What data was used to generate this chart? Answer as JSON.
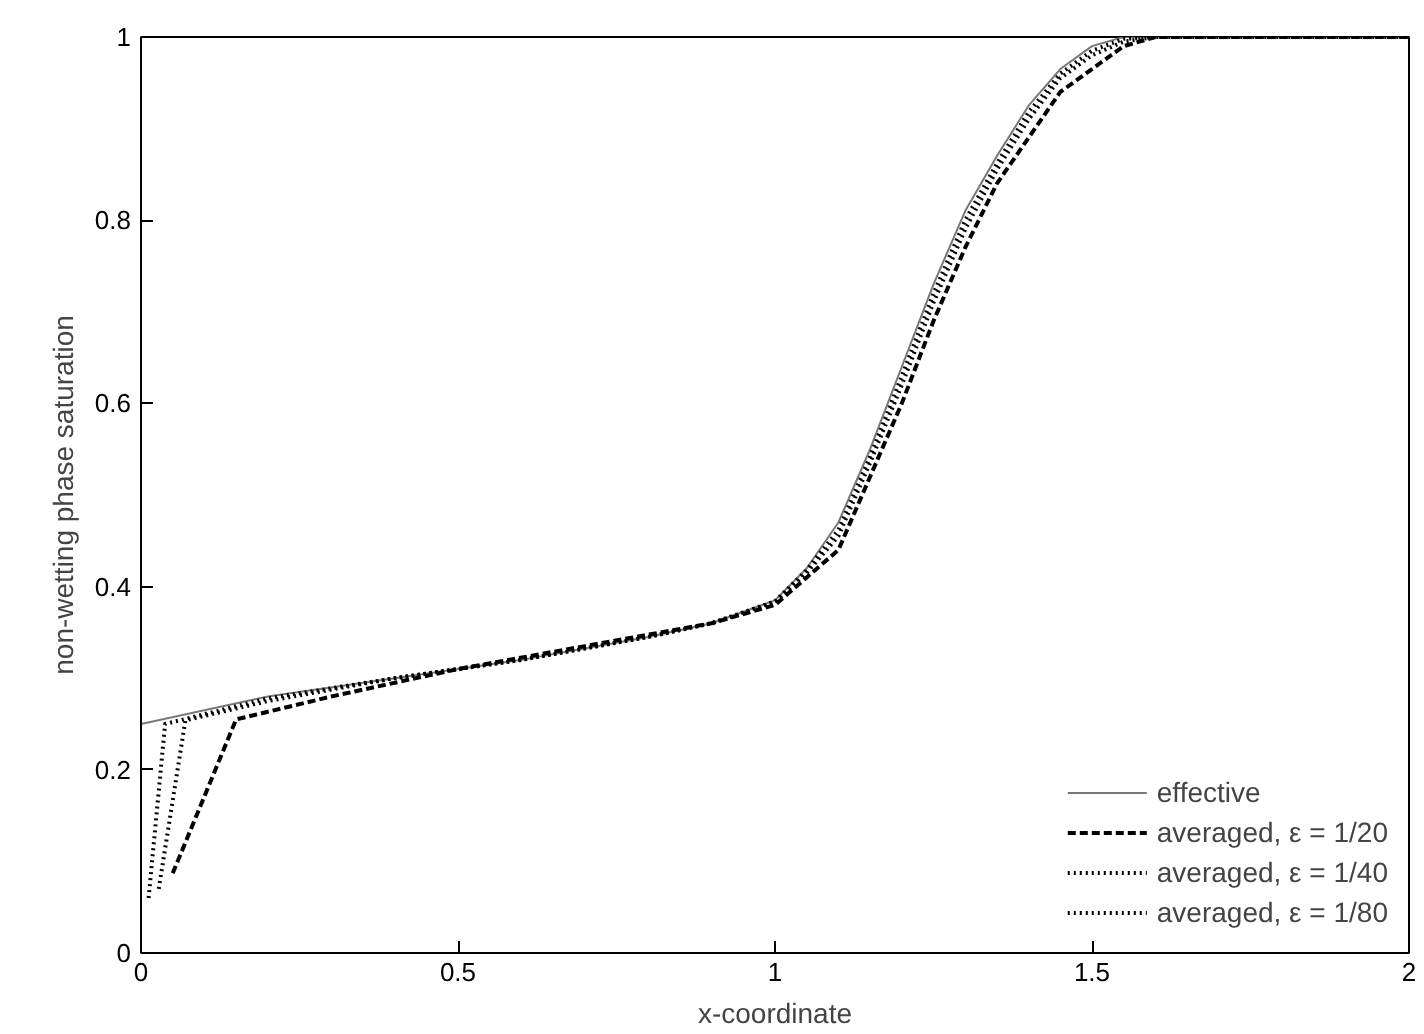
{
  "chart_data": {
    "type": "line",
    "xlabel": "x-coordinate",
    "ylabel": "non-wetting phase saturation",
    "xlim": [
      0,
      2
    ],
    "ylim": [
      0,
      1
    ],
    "xticks": [
      0,
      0.5,
      1,
      1.5,
      2
    ],
    "yticks": [
      0,
      0.2,
      0.4,
      0.6,
      0.8,
      1
    ],
    "grid": false,
    "legend": "bottom right",
    "marker": "none",
    "series": [
      {
        "name": "effective",
        "color": "#777777",
        "line_style": "solid",
        "x": [
          0,
          0.2,
          0.4,
          0.6,
          0.8,
          0.9,
          1.0,
          1.05,
          1.1,
          1.15,
          1.2,
          1.25,
          1.3,
          1.35,
          1.4,
          1.45,
          1.5,
          1.55,
          1.6,
          2
        ],
        "values": [
          0.25,
          0.28,
          0.3,
          0.32,
          0.345,
          0.36,
          0.385,
          0.42,
          0.47,
          0.55,
          0.64,
          0.73,
          0.81,
          0.87,
          0.925,
          0.965,
          0.99,
          1.0,
          1.0,
          1.0
        ]
      },
      {
        "name": "averaged, ε = 1/20",
        "color": "#000000",
        "line_style": "dashed",
        "x": [
          0.05,
          0.15,
          0.3,
          0.5,
          0.7,
          0.9,
          1.0,
          1.05,
          1.1,
          1.15,
          1.2,
          1.25,
          1.3,
          1.35,
          1.4,
          1.45,
          1.5,
          1.55,
          1.6,
          2
        ],
        "values": [
          0.087,
          0.255,
          0.28,
          0.31,
          0.335,
          0.36,
          0.38,
          0.41,
          0.44,
          0.52,
          0.6,
          0.69,
          0.77,
          0.84,
          0.89,
          0.94,
          0.965,
          0.99,
          1.0,
          1.0
        ]
      },
      {
        "name": "averaged, ε = 1/40",
        "color": "#000000",
        "line_style": "dotted",
        "x": [
          0.028,
          0.07,
          0.2,
          0.4,
          0.6,
          0.8,
          0.9,
          1.0,
          1.05,
          1.1,
          1.15,
          1.2,
          1.25,
          1.3,
          1.35,
          1.4,
          1.45,
          1.5,
          1.55,
          1.6,
          2
        ],
        "values": [
          0.07,
          0.254,
          0.275,
          0.3,
          0.32,
          0.345,
          0.36,
          0.383,
          0.415,
          0.455,
          0.535,
          0.62,
          0.71,
          0.79,
          0.855,
          0.91,
          0.955,
          0.98,
          0.995,
          1.0,
          1.0
        ]
      },
      {
        "name": "averaged, ε = 1/80",
        "color": "#000000",
        "line_style": "dotted",
        "x": [
          0.012,
          0.038,
          0.2,
          0.4,
          0.6,
          0.8,
          0.9,
          1.0,
          1.05,
          1.1,
          1.15,
          1.2,
          1.25,
          1.3,
          1.35,
          1.4,
          1.45,
          1.5,
          1.55,
          1.6,
          2
        ],
        "values": [
          0.06,
          0.25,
          0.278,
          0.3,
          0.32,
          0.345,
          0.36,
          0.384,
          0.418,
          0.462,
          0.542,
          0.63,
          0.72,
          0.8,
          0.862,
          0.918,
          0.96,
          0.985,
          0.998,
          1.0,
          1.0
        ]
      }
    ]
  }
}
